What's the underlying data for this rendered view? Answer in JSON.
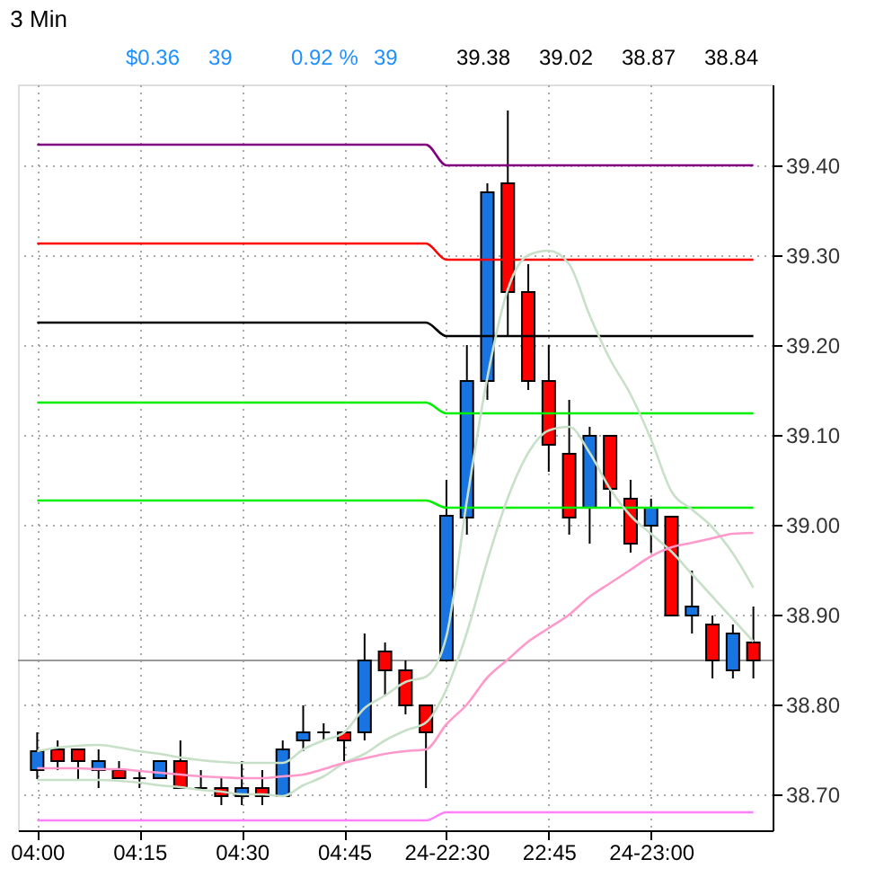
{
  "chart_data": {
    "type": "candlestick",
    "title": "3 Min",
    "categories": [
      "04:00",
      null,
      null,
      null,
      null,
      "04:15",
      null,
      null,
      null,
      null,
      "04:30",
      null,
      null,
      null,
      null,
      "04:45",
      null,
      null,
      null,
      null,
      "24-22:30",
      null,
      null,
      null,
      null,
      "22:45",
      null,
      null,
      null,
      null,
      "24-23:00",
      null,
      null,
      null,
      null,
      null
    ],
    "ohlc": [
      [
        38.727,
        38.769,
        38.717,
        38.748
      ],
      [
        38.75,
        38.76,
        38.727,
        38.737
      ],
      [
        38.75,
        38.75,
        38.717,
        38.737
      ],
      [
        38.727,
        38.75,
        38.707,
        38.737
      ],
      [
        38.727,
        38.737,
        38.718,
        38.718
      ],
      [
        38.718,
        38.727,
        38.707,
        38.718
      ],
      [
        38.718,
        38.737,
        38.718,
        38.737
      ],
      [
        38.737,
        38.76,
        38.707,
        38.707
      ],
      [
        38.707,
        38.727,
        38.707,
        38.707
      ],
      [
        38.707,
        38.718,
        38.688,
        38.698
      ],
      [
        38.698,
        38.737,
        38.688,
        38.707
      ],
      [
        38.707,
        38.727,
        38.688,
        38.698
      ],
      [
        38.698,
        38.76,
        38.698,
        38.75
      ],
      [
        38.76,
        38.799,
        38.748,
        38.769
      ],
      [
        38.769,
        38.779,
        38.76,
        38.769
      ],
      [
        38.769,
        38.769,
        38.737,
        38.76
      ],
      [
        38.769,
        38.879,
        38.76,
        38.849
      ],
      [
        38.859,
        38.869,
        38.809,
        38.838
      ],
      [
        38.838,
        38.849,
        38.789,
        38.799
      ],
      [
        38.799,
        38.799,
        38.707,
        38.769
      ],
      [
        38.849,
        39.05,
        38.849,
        39.01
      ],
      [
        39.008,
        39.2,
        38.989,
        39.16
      ],
      [
        39.16,
        39.38,
        39.139,
        39.37
      ],
      [
        39.38,
        39.461,
        39.21,
        39.259
      ],
      [
        39.259,
        39.29,
        39.15,
        39.16
      ],
      [
        39.16,
        39.2,
        39.059,
        39.089
      ],
      [
        39.079,
        39.139,
        38.989,
        39.008
      ],
      [
        39.019,
        39.109,
        38.979,
        39.099
      ],
      [
        39.099,
        39.099,
        39.019,
        39.04
      ],
      [
        39.029,
        39.05,
        38.969,
        38.979
      ],
      [
        38.999,
        39.029,
        38.969,
        39.019
      ],
      [
        39.009,
        39.009,
        38.899,
        38.899
      ],
      [
        38.899,
        38.949,
        38.879,
        38.909
      ],
      [
        38.889,
        38.899,
        38.829,
        38.849
      ],
      [
        38.838,
        38.889,
        38.829,
        38.879
      ],
      [
        38.869,
        38.909,
        38.829,
        38.849
      ]
    ],
    "colors": [
      "#1874e0",
      "#ff0000",
      "#ff0000",
      "#1874e0",
      "#ff0000",
      "#000000",
      "#1874e0",
      "#ff0000",
      "#000000",
      "#ff0000",
      "#1874e0",
      "#ff0000",
      "#1874e0",
      "#1874e0",
      "#000000",
      "#ff0000",
      "#1874e0",
      "#ff0000",
      "#ff0000",
      "#ff0000",
      "#1874e0",
      "#1874e0",
      "#1874e0",
      "#ff0000",
      "#ff0000",
      "#ff0000",
      "#ff0000",
      "#1874e0",
      "#ff0000",
      "#ff0000",
      "#1874e0",
      "#ff0000",
      "#1874e0",
      "#ff0000",
      "#1874e0",
      "#ff0000"
    ],
    "series": [
      {
        "type": "line",
        "color": "#800080",
        "values": [
          39.423,
          39.423,
          39.423,
          39.423,
          39.423,
          39.423,
          39.423,
          39.423,
          39.423,
          39.423,
          39.423,
          39.423,
          39.423,
          39.423,
          39.423,
          39.423,
          39.423,
          39.423,
          39.423,
          39.423,
          39.4,
          39.4,
          39.4,
          39.4,
          39.4,
          39.4,
          39.4,
          39.4,
          39.4,
          39.4,
          39.4,
          39.4,
          39.4,
          39.4,
          39.4,
          39.4
        ]
      },
      {
        "type": "line",
        "color": "#ff0000",
        "values": [
          39.313,
          39.313,
          39.313,
          39.313,
          39.313,
          39.313,
          39.313,
          39.313,
          39.313,
          39.313,
          39.313,
          39.313,
          39.313,
          39.313,
          39.313,
          39.313,
          39.313,
          39.313,
          39.313,
          39.313,
          39.295,
          39.295,
          39.295,
          39.295,
          39.295,
          39.295,
          39.295,
          39.295,
          39.295,
          39.295,
          39.295,
          39.295,
          39.295,
          39.295,
          39.295,
          39.295
        ]
      },
      {
        "type": "line",
        "color": "#000000",
        "values": [
          39.225,
          39.225,
          39.225,
          39.225,
          39.225,
          39.225,
          39.225,
          39.225,
          39.225,
          39.225,
          39.225,
          39.225,
          39.225,
          39.225,
          39.225,
          39.225,
          39.225,
          39.225,
          39.225,
          39.225,
          39.21,
          39.21,
          39.21,
          39.21,
          39.21,
          39.21,
          39.21,
          39.21,
          39.21,
          39.21,
          39.21,
          39.21,
          39.21,
          39.21,
          39.21,
          39.21
        ]
      },
      {
        "type": "line",
        "color": "#00ee00",
        "values": [
          39.136,
          39.136,
          39.136,
          39.136,
          39.136,
          39.136,
          39.136,
          39.136,
          39.136,
          39.136,
          39.136,
          39.136,
          39.136,
          39.136,
          39.136,
          39.136,
          39.136,
          39.136,
          39.136,
          39.136,
          39.124,
          39.124,
          39.124,
          39.124,
          39.124,
          39.124,
          39.124,
          39.124,
          39.124,
          39.124,
          39.124,
          39.124,
          39.124,
          39.124,
          39.124,
          39.124
        ]
      },
      {
        "type": "line",
        "color": "#00ee00",
        "values": [
          39.027,
          39.027,
          39.027,
          39.027,
          39.027,
          39.027,
          39.027,
          39.027,
          39.027,
          39.027,
          39.027,
          39.027,
          39.027,
          39.027,
          39.027,
          39.027,
          39.027,
          39.027,
          39.027,
          39.027,
          39.019,
          39.019,
          39.019,
          39.019,
          39.019,
          39.019,
          39.019,
          39.019,
          39.019,
          39.019,
          39.019,
          39.019,
          39.019,
          39.019,
          39.019,
          39.019
        ]
      },
      {
        "type": "line",
        "color": "#ff80ff",
        "values": [
          38.671,
          38.671,
          38.671,
          38.671,
          38.671,
          38.671,
          38.671,
          38.671,
          38.671,
          38.671,
          38.671,
          38.671,
          38.671,
          38.671,
          38.671,
          38.671,
          38.671,
          38.671,
          38.671,
          38.671,
          38.68,
          38.68,
          38.68,
          38.68,
          38.68,
          38.68,
          38.68,
          38.68,
          38.68,
          38.68,
          38.68,
          38.68,
          38.68,
          38.68,
          38.68,
          38.68
        ]
      },
      {
        "type": "line",
        "color": "#c8e0c8",
        "values": [
          38.748,
          38.752,
          38.754,
          38.755,
          38.752,
          38.748,
          38.745,
          38.741,
          38.738,
          38.736,
          38.735,
          38.735,
          38.735,
          38.75,
          38.76,
          38.769,
          38.796,
          38.81,
          38.825,
          38.831,
          38.876,
          39.027,
          39.164,
          39.262,
          39.3,
          39.305,
          39.29,
          39.233,
          39.184,
          39.145,
          39.095,
          39.037,
          39.017,
          38.997,
          38.968,
          38.93
        ]
      },
      {
        "type": "line",
        "color": "#c8e0c8",
        "values": [
          38.716,
          38.716,
          38.716,
          38.716,
          38.715,
          38.713,
          38.71,
          38.708,
          38.705,
          38.703,
          38.7,
          38.7,
          38.698,
          38.71,
          38.72,
          38.735,
          38.745,
          38.76,
          38.771,
          38.78,
          38.817,
          38.88,
          38.96,
          39.03,
          39.08,
          39.105,
          39.109,
          39.08,
          39.04,
          39.01,
          38.99,
          38.97,
          38.945,
          38.92,
          38.895,
          38.87
        ]
      },
      {
        "type": "line",
        "color": "#ff99cc",
        "values": [
          38.729,
          38.729,
          38.729,
          38.728,
          38.728,
          38.726,
          38.724,
          38.722,
          38.72,
          38.719,
          38.718,
          38.718,
          38.72,
          38.722,
          38.728,
          38.735,
          38.74,
          38.745,
          38.748,
          38.75,
          38.778,
          38.8,
          38.83,
          38.85,
          38.87,
          38.885,
          38.9,
          38.92,
          38.935,
          38.95,
          38.965,
          38.975,
          38.98,
          38.985,
          38.99,
          38.991
        ]
      }
    ],
    "ref_lines": [
      {
        "axis": "y",
        "value": 38.849,
        "color": "#999999"
      }
    ],
    "annotations": [
      "$0.36",
      "39",
      "0.92 %",
      "39",
      "39.38",
      "39.02",
      "38.87",
      "38.84"
    ],
    "ylim": [
      38.66,
      39.49
    ],
    "yticks": [
      {
        "value": 38.7,
        "label": "38.70"
      },
      {
        "value": 38.8,
        "label": "38.80"
      },
      {
        "value": 38.9,
        "label": "38.90"
      },
      {
        "value": 39.0,
        "label": "39.00"
      },
      {
        "value": 39.1,
        "label": "39.10"
      },
      {
        "value": 39.2,
        "label": "39.20"
      },
      {
        "value": 39.3,
        "label": "39.30"
      },
      {
        "value": 39.4,
        "label": "39.40"
      }
    ],
    "grid": true
  }
}
